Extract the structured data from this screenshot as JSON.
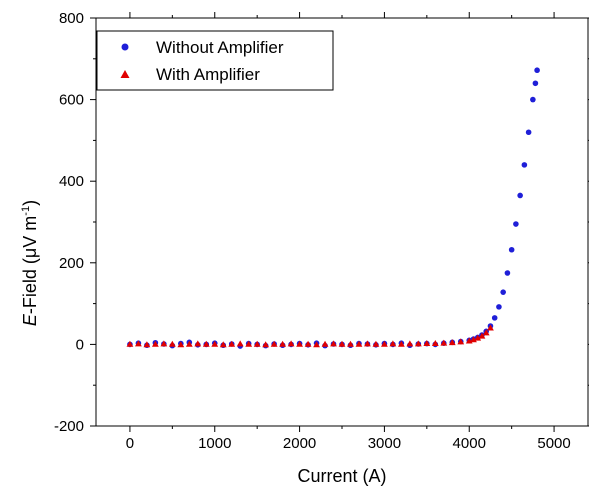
{
  "chart_data": {
    "type": "scatter",
    "title": "",
    "xlabel": "Current (A)",
    "ylabel": {
      "italic": "E",
      "text": "-Field (",
      "unit_mu": "μ",
      "unit_rest": "V m",
      "superscript": "-1",
      "close": ")"
    },
    "xlim": [
      -400,
      5400
    ],
    "ylim": [
      -200,
      800
    ],
    "x_ticks": [
      0,
      1000,
      2000,
      3000,
      4000,
      5000
    ],
    "y_ticks": [
      -200,
      0,
      200,
      400,
      600,
      800
    ],
    "grid": false,
    "legend_position": "top-left",
    "series": [
      {
        "name": "Without Amplifier",
        "marker": "circle",
        "color": "#1f1fd8",
        "x": [
          0,
          100,
          200,
          300,
          400,
          500,
          600,
          700,
          800,
          900,
          1000,
          1100,
          1200,
          1300,
          1400,
          1500,
          1600,
          1700,
          1800,
          1900,
          2000,
          2100,
          2200,
          2300,
          2400,
          2500,
          2600,
          2700,
          2800,
          2900,
          3000,
          3100,
          3200,
          3300,
          3400,
          3500,
          3600,
          3700,
          3800,
          3900,
          4000,
          4050,
          4100,
          4150,
          4200,
          4250,
          4300,
          4350,
          4400,
          4450,
          4500,
          4550,
          4600,
          4650,
          4700,
          4750,
          4780,
          4800
        ],
        "y": [
          0,
          3,
          -2,
          4,
          1,
          -3,
          2,
          5,
          -1,
          0,
          3,
          -2,
          1,
          -4,
          2,
          0,
          -3,
          1,
          -2,
          0,
          2,
          -1,
          3,
          -3,
          1,
          0,
          -2,
          2,
          1,
          -1,
          2,
          0,
          3,
          -2,
          1,
          2,
          0,
          3,
          5,
          7,
          10,
          13,
          17,
          23,
          32,
          45,
          65,
          92,
          128,
          175,
          232,
          295,
          365,
          440,
          520,
          600,
          640,
          672
        ]
      },
      {
        "name": "With Amplifier",
        "marker": "triangle",
        "color": "#e00000",
        "x": [
          0,
          100,
          200,
          300,
          400,
          500,
          600,
          700,
          800,
          900,
          1000,
          1100,
          1200,
          1300,
          1400,
          1500,
          1600,
          1700,
          1800,
          1900,
          2000,
          2100,
          2200,
          2300,
          2400,
          2500,
          2600,
          2700,
          2800,
          2900,
          3000,
          3100,
          3200,
          3300,
          3400,
          3500,
          3600,
          3700,
          3800,
          3900,
          4000,
          4050,
          4100,
          4150,
          4200,
          4250
        ],
        "y": [
          0,
          1,
          -1,
          0,
          1,
          0,
          -1,
          0,
          1,
          0,
          0,
          -1,
          0,
          1,
          0,
          0,
          -1,
          0,
          0,
          1,
          0,
          0,
          -1,
          0,
          1,
          0,
          0,
          0,
          1,
          0,
          0,
          1,
          0,
          1,
          1,
          2,
          2,
          3,
          4,
          6,
          8,
          11,
          15,
          20,
          28,
          40
        ]
      }
    ]
  }
}
